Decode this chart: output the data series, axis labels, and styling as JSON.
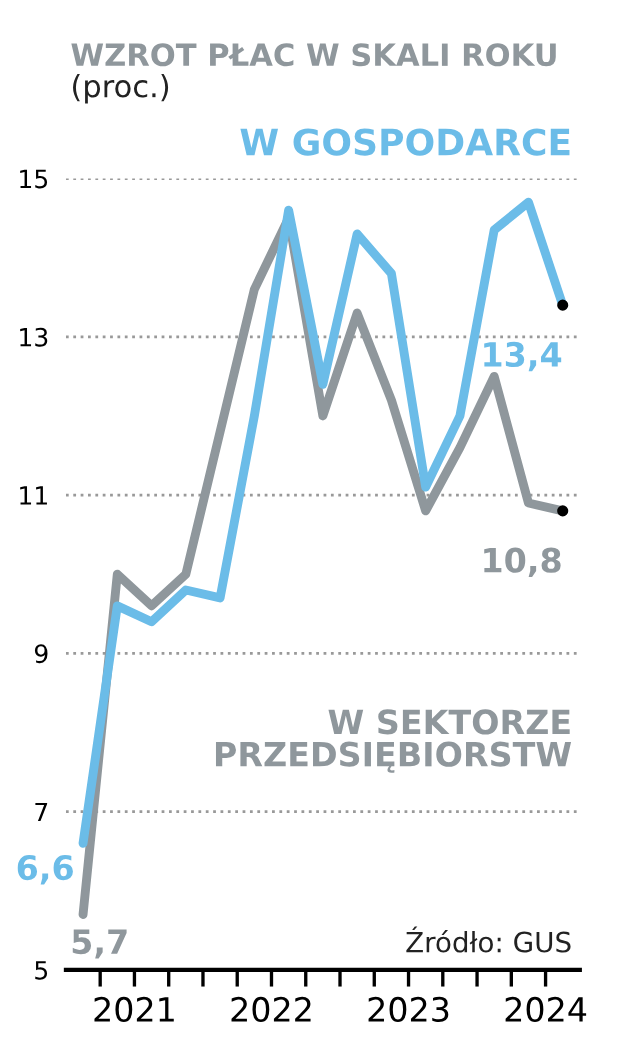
{
  "chart_data": {
    "type": "line",
    "title": "WZROT PŁAC W SKALI ROKU",
    "subtitle": "(proc.)",
    "x": [
      2021.125,
      2021.375,
      2021.625,
      2021.875,
      2022.125,
      2022.375,
      2022.625,
      2022.875,
      2023.125,
      2023.375,
      2023.625,
      2023.875,
      2024.125,
      2024.375,
      2024.625
    ],
    "series": [
      {
        "name": "W SEKTORZE PRZEDSIĘBIORSTW",
        "color": "#8f979c",
        "values": [
          5.7,
          10.0,
          9.6,
          10.0,
          11.8,
          13.6,
          14.5,
          12.0,
          13.3,
          12.2,
          10.8,
          11.6,
          12.5,
          10.9,
          10.8
        ],
        "value_labels": [
          "5,7",
          null,
          null,
          null,
          null,
          null,
          null,
          null,
          null,
          null,
          null,
          null,
          null,
          null,
          "10,8"
        ]
      },
      {
        "name": "W GOSPODARCE",
        "color": "#6bbce8",
        "values": [
          6.6,
          9.6,
          9.4,
          9.8,
          9.7,
          12.0,
          14.6,
          12.4,
          14.3,
          13.8,
          11.1,
          12.0,
          14.35,
          14.7,
          13.4
        ],
        "value_labels": [
          "6,6",
          null,
          null,
          null,
          null,
          null,
          null,
          null,
          null,
          null,
          null,
          null,
          null,
          null,
          "13,4"
        ]
      }
    ],
    "xlim": [
      2021,
      2024.75
    ],
    "xticks": [
      {
        "value": 2021.25,
        "label": null
      },
      {
        "value": 2021.5,
        "label": "2021"
      },
      {
        "value": 2021.75,
        "label": null
      },
      {
        "value": 2022,
        "label": null
      },
      {
        "value": 2022.25,
        "label": null
      },
      {
        "value": 2022.5,
        "label": "2022"
      },
      {
        "value": 2022.75,
        "label": null
      },
      {
        "value": 2023,
        "label": null
      },
      {
        "value": 2023.25,
        "label": null
      },
      {
        "value": 2023.5,
        "label": "2023"
      },
      {
        "value": 2023.75,
        "label": null
      },
      {
        "value": 2024,
        "label": null
      },
      {
        "value": 2024.25,
        "label": null
      },
      {
        "value": 2024.5,
        "label": "2024"
      }
    ],
    "ylim": [
      5,
      15
    ],
    "yticks": [
      5,
      7,
      9,
      11,
      13,
      15
    ],
    "grid": "y",
    "marker": "none",
    "line_style": "solid",
    "annotations": [
      "Źródło: GUS"
    ]
  }
}
